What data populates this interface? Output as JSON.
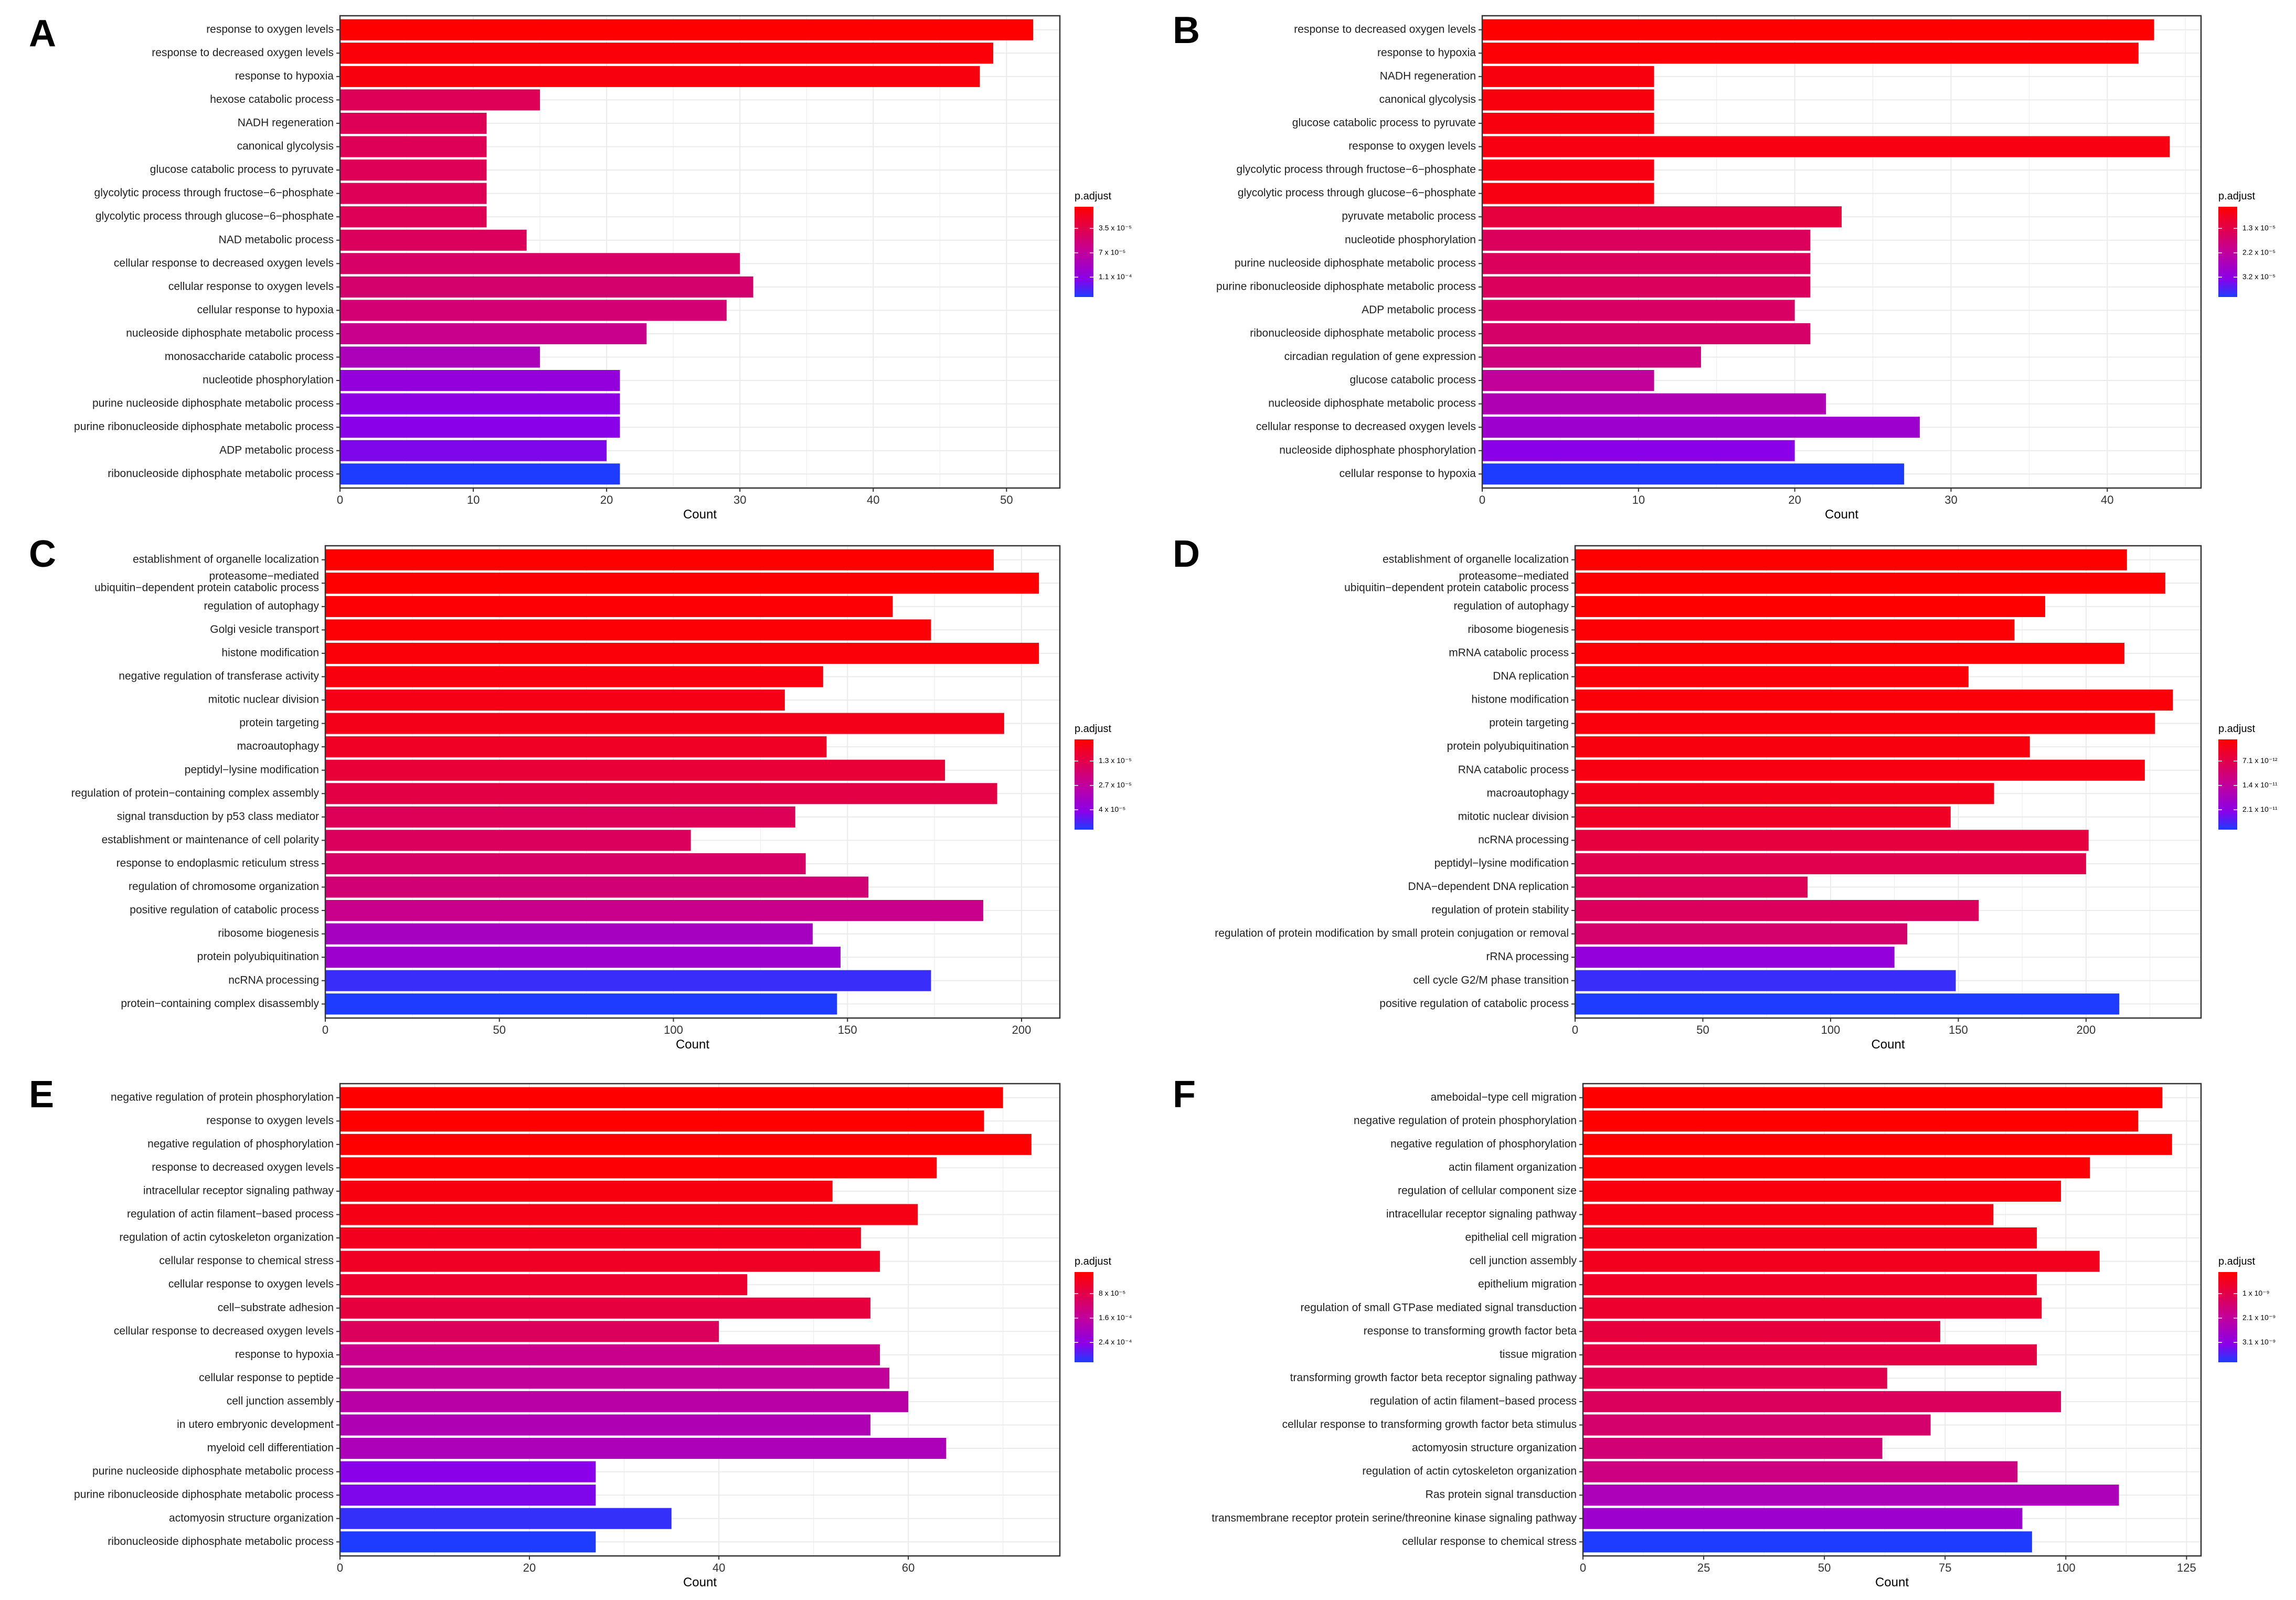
{
  "figure": {
    "title": ""
  },
  "colors": {
    "high": "#ff0000",
    "mid": "#a000ff",
    "low": "#1e3cff",
    "grid": "#ebebeb",
    "frame": "#333333"
  },
  "chart_data": [
    {
      "panel": "A",
      "type": "bar",
      "orientation": "horizontal",
      "xlabel": "Count",
      "xlim": [
        0,
        54
      ],
      "xticks": [
        0,
        10,
        20,
        30,
        40,
        50
      ],
      "categories": [
        "response to oxygen levels",
        "response to decreased oxygen levels",
        "response to hypoxia",
        "hexose catabolic process",
        "NADH regeneration",
        "canonical glycolysis",
        "glucose catabolic process to pyruvate",
        "glycolytic process through fructose−6−phosphate",
        "glycolytic process through glucose−6−phosphate",
        "NAD metabolic process",
        "cellular response to decreased oxygen levels",
        "cellular response to oxygen levels",
        "cellular response to hypoxia",
        "nucleoside diphosphate metabolic process",
        "monosaccharide catabolic process",
        "nucleotide phosphorylation",
        "purine nucleoside diphosphate metabolic process",
        "purine ribonucleoside diphosphate metabolic process",
        "ADP metabolic process",
        "ribonucleoside diphosphate metabolic process"
      ],
      "values": [
        52,
        49,
        48,
        15,
        11,
        11,
        11,
        11,
        11,
        14,
        30,
        31,
        29,
        23,
        15,
        21,
        21,
        21,
        20,
        21
      ],
      "color_rank": [
        0.0,
        0.03,
        0.05,
        0.28,
        0.28,
        0.28,
        0.28,
        0.28,
        0.28,
        0.3,
        0.33,
        0.35,
        0.37,
        0.45,
        0.62,
        0.75,
        0.78,
        0.8,
        0.82,
        1.0
      ],
      "legend": {
        "title": "p.adjust",
        "labels": [
          "3.5 x 10⁻⁵",
          "7 x 10⁻⁵",
          "1.1 x 10⁻⁴"
        ]
      }
    },
    {
      "panel": "B",
      "type": "bar",
      "orientation": "horizontal",
      "xlabel": "Count",
      "xlim": [
        0,
        46
      ],
      "xticks": [
        0,
        10,
        20,
        30,
        40
      ],
      "categories": [
        "response to decreased oxygen levels",
        "response to hypoxia",
        "NADH regeneration",
        "canonical glycolysis",
        "glucose catabolic process to pyruvate",
        "response to oxygen levels",
        "glycolytic process through fructose−6−phosphate",
        "glycolytic process through glucose−6−phosphate",
        "pyruvate metabolic process",
        "nucleotide phosphorylation",
        "purine nucleoside diphosphate metabolic process",
        "purine ribonucleoside diphosphate metabolic process",
        "ADP metabolic process",
        "ribonucleoside diphosphate metabolic process",
        "circadian regulation of gene expression",
        "glucose catabolic process",
        "nucleoside diphosphate metabolic process",
        "cellular response to decreased oxygen levels",
        "nucleoside diphosphate phosphorylation",
        "cellular response to hypoxia"
      ],
      "values": [
        43,
        42,
        11,
        11,
        11,
        44,
        11,
        11,
        23,
        21,
        21,
        21,
        20,
        21,
        14,
        11,
        22,
        28,
        20,
        27
      ],
      "color_rank": [
        0.0,
        0.02,
        0.05,
        0.05,
        0.05,
        0.06,
        0.06,
        0.06,
        0.2,
        0.3,
        0.3,
        0.3,
        0.32,
        0.34,
        0.4,
        0.5,
        0.6,
        0.7,
        0.8,
        1.0
      ],
      "legend": {
        "title": "p.adjust",
        "labels": [
          "1.3 x 10⁻⁵",
          "2.2 x 10⁻⁵",
          "3.2 x 10⁻⁵"
        ]
      }
    },
    {
      "panel": "C",
      "type": "bar",
      "orientation": "horizontal",
      "xlabel": "Count",
      "xlim": [
        0,
        211
      ],
      "xticks": [
        0,
        50,
        100,
        150,
        200
      ],
      "categories": [
        "establishment of organelle localization",
        "proteasome−mediated\nubiquitin−dependent protein catabolic process",
        "regulation of autophagy",
        "Golgi vesicle transport",
        "histone modification",
        "negative regulation of transferase activity",
        "mitotic nuclear division",
        "protein targeting",
        "macroautophagy",
        "peptidyl−lysine modification",
        "regulation of protein−containing complex assembly",
        "signal transduction by p53 class mediator",
        "establishment or maintenance of cell polarity",
        "response to endoplasmic reticulum stress",
        "regulation of chromosome organization",
        "positive regulation of catabolic process",
        "ribosome biogenesis",
        "protein polyubiquitination",
        "ncRNA processing",
        "protein−containing complex disassembly"
      ],
      "values": [
        192,
        205,
        163,
        174,
        205,
        143,
        132,
        195,
        144,
        178,
        193,
        135,
        105,
        138,
        156,
        189,
        140,
        148,
        174,
        147
      ],
      "color_rank": [
        0.0,
        0.0,
        0.02,
        0.02,
        0.03,
        0.05,
        0.07,
        0.08,
        0.12,
        0.18,
        0.22,
        0.28,
        0.3,
        0.33,
        0.38,
        0.45,
        0.65,
        0.7,
        0.95,
        1.0
      ],
      "legend": {
        "title": "p.adjust",
        "labels": [
          "1.3 x 10⁻⁵",
          "2.7 x 10⁻⁵",
          "4 x 10⁻⁵"
        ]
      }
    },
    {
      "panel": "D",
      "type": "bar",
      "orientation": "horizontal",
      "xlabel": "Count",
      "xlim": [
        0,
        245
      ],
      "xticks": [
        0,
        50,
        100,
        150,
        200
      ],
      "categories": [
        "establishment of organelle localization",
        "proteasome−mediated\nubiquitin−dependent protein catabolic process",
        "regulation of autophagy",
        "ribosome biogenesis",
        "mRNA catabolic process",
        "DNA replication",
        "histone modification",
        "protein targeting",
        "protein polyubiquitination",
        "RNA catabolic process",
        "macroautophagy",
        "mitotic nuclear division",
        "ncRNA processing",
        "peptidyl−lysine modification",
        "DNA−dependent DNA replication",
        "regulation of protein stability",
        "regulation of protein modification by small protein conjugation or removal",
        "rRNA processing",
        "cell cycle G2/M phase transition",
        "positive regulation of catabolic process"
      ],
      "values": [
        216,
        231,
        184,
        172,
        215,
        154,
        234,
        227,
        178,
        223,
        164,
        147,
        201,
        200,
        91,
        158,
        130,
        125,
        149,
        213
      ],
      "color_rank": [
        0.0,
        0.0,
        0.0,
        0.02,
        0.02,
        0.03,
        0.03,
        0.04,
        0.05,
        0.06,
        0.08,
        0.12,
        0.2,
        0.25,
        0.28,
        0.3,
        0.35,
        0.75,
        0.95,
        1.0
      ],
      "legend": {
        "title": "p.adjust",
        "labels": [
          "7.1 x 10⁻¹²",
          "1.4 x 10⁻¹¹",
          "2.1 x 10⁻¹¹"
        ]
      }
    },
    {
      "panel": "E",
      "type": "bar",
      "orientation": "horizontal",
      "xlabel": "Count",
      "xlim": [
        0,
        76
      ],
      "xticks": [
        0,
        20,
        40,
        60
      ],
      "categories": [
        "negative regulation of protein phosphorylation",
        "response to oxygen levels",
        "negative regulation of phosphorylation",
        "response to decreased oxygen levels",
        "intracellular receptor signaling pathway",
        "regulation of actin filament−based process",
        "regulation of actin cytoskeleton organization",
        "cellular response to chemical stress",
        "cellular response to oxygen levels",
        "cell−substrate adhesion",
        "cellular response to decreased oxygen levels",
        "response to hypoxia",
        "cellular response to peptide",
        "cell junction assembly",
        "in utero embryonic development",
        "myeloid cell differentiation",
        "purine nucleoside diphosphate metabolic process",
        "purine ribonucleoside diphosphate metabolic process",
        "actomyosin structure organization",
        "ribonucleoside diphosphate metabolic process"
      ],
      "values": [
        70,
        68,
        73,
        63,
        52,
        61,
        55,
        57,
        43,
        56,
        40,
        57,
        58,
        60,
        56,
        64,
        27,
        27,
        35,
        27
      ],
      "color_rank": [
        0.0,
        0.0,
        0.0,
        0.02,
        0.05,
        0.07,
        0.1,
        0.12,
        0.15,
        0.2,
        0.3,
        0.45,
        0.5,
        0.55,
        0.6,
        0.62,
        0.8,
        0.82,
        0.96,
        1.0
      ],
      "legend": {
        "title": "p.adjust",
        "labels": [
          "8 x 10⁻⁵",
          "1.6 x 10⁻⁴",
          "2.4 x 10⁻⁴"
        ]
      }
    },
    {
      "panel": "F",
      "type": "bar",
      "orientation": "horizontal",
      "xlabel": "Count",
      "xlim": [
        0,
        128
      ],
      "xticks": [
        0,
        25,
        50,
        75,
        100,
        125
      ],
      "categories": [
        "ameboidal−type cell migration",
        "negative regulation of protein phosphorylation",
        "negative regulation of phosphorylation",
        "actin filament organization",
        "regulation of cellular component size",
        "intracellular receptor signaling pathway",
        "epithelial cell migration",
        "cell junction assembly",
        "epithelium migration",
        "regulation of small GTPase mediated signal transduction",
        "response to transforming growth factor beta",
        "tissue migration",
        "transforming growth factor beta receptor signaling pathway",
        "regulation of actin filament−based process",
        "cellular response to transforming growth factor beta stimulus",
        "actomyosin structure organization",
        "regulation of actin cytoskeleton organization",
        "Ras protein signal transduction",
        "transmembrane receptor protein serine/threonine kinase signaling pathway",
        "cellular response to chemical stress"
      ],
      "values": [
        120,
        115,
        122,
        105,
        99,
        85,
        94,
        107,
        94,
        95,
        74,
        94,
        63,
        99,
        72,
        62,
        90,
        111,
        91,
        93
      ],
      "color_rank": [
        0.0,
        0.0,
        0.0,
        0.02,
        0.04,
        0.06,
        0.08,
        0.1,
        0.12,
        0.15,
        0.2,
        0.22,
        0.25,
        0.3,
        0.35,
        0.38,
        0.42,
        0.62,
        0.7,
        1.0
      ],
      "legend": {
        "title": "p.adjust",
        "labels": [
          "1 x 10⁻⁹",
          "2.1 x 10⁻⁹",
          "3.1 x 10⁻⁹"
        ]
      }
    }
  ]
}
